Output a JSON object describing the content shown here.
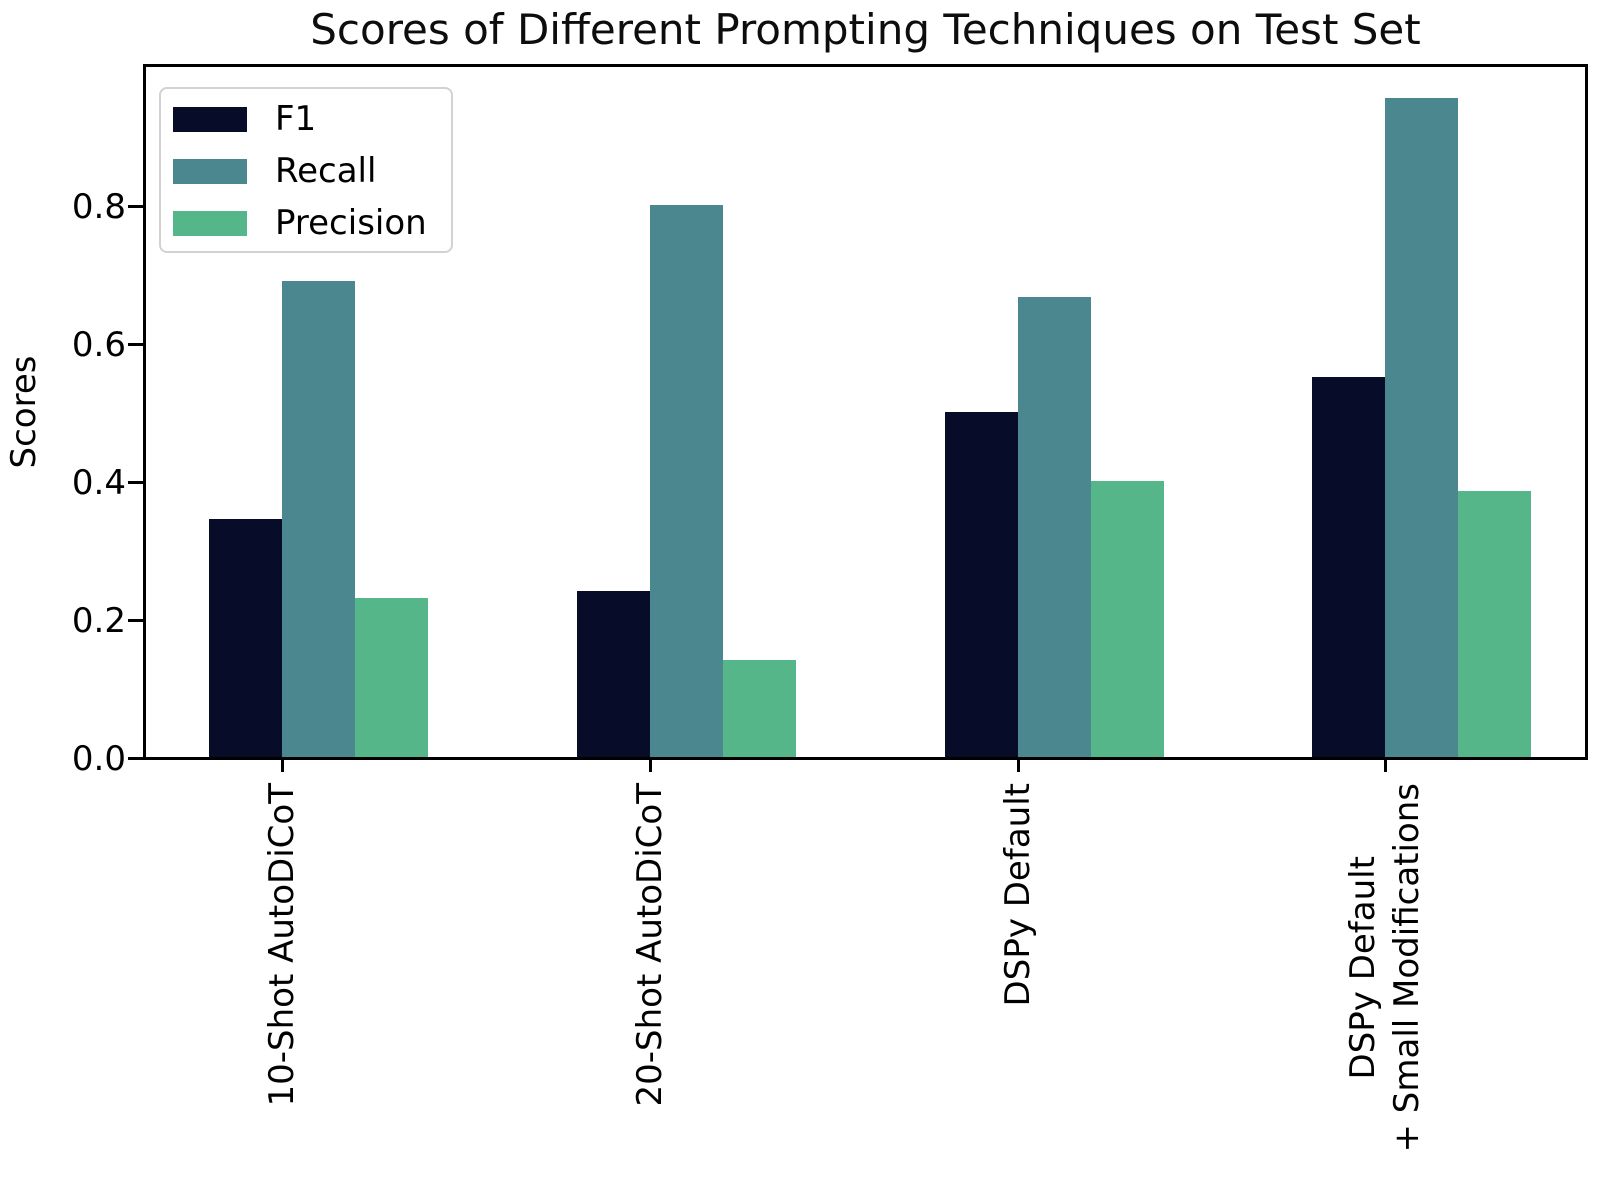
{
  "chart_data": {
    "type": "bar",
    "title": "Scores of Different Prompting Techniques on Test Set",
    "xlabel": "",
    "ylabel": "Scores",
    "categories": [
      "10-Shot AutoDiCoT",
      "20-Shot AutoDiCoT",
      "DSPy Default",
      "DSPy Default\n+ Small Modifications"
    ],
    "series": [
      {
        "name": "F1",
        "color": "#070d29",
        "values": [
          0.345,
          0.24,
          0.5,
          0.55
        ]
      },
      {
        "name": "Recall",
        "color": "#4a878e",
        "values": [
          0.69,
          0.8,
          0.667,
          0.955
        ]
      },
      {
        "name": "Precision",
        "color": "#55b68a",
        "values": [
          0.23,
          0.14,
          0.4,
          0.385
        ]
      }
    ],
    "y_ticks": [
      0.0,
      0.2,
      0.4,
      0.6,
      0.8
    ],
    "y_tick_labels": [
      "0.0",
      "0.2",
      "0.4",
      "0.6",
      "0.8"
    ],
    "ylim": [
      0,
      1.01
    ],
    "grid": false,
    "legend_position": "upper left",
    "axis_color": "#000000",
    "legend_border_color": "#d2d2d2",
    "background_color": "#ffffff"
  }
}
